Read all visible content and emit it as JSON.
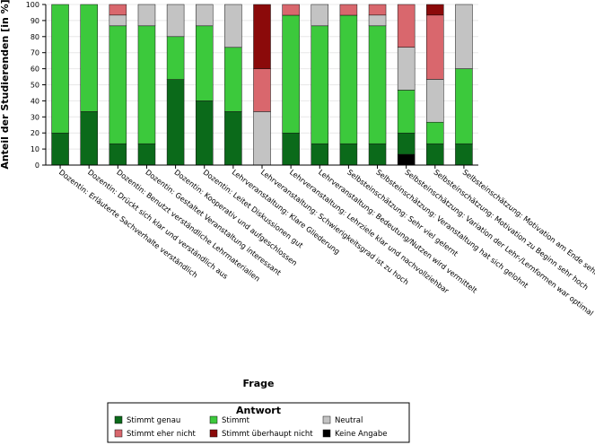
{
  "chart_data": {
    "type": "bar",
    "stacked": true,
    "xlabel": "Frage",
    "ylabel": "Anteil der Studierenden [in %]",
    "ylim": [
      0,
      100
    ],
    "yticks": [
      0,
      10,
      20,
      30,
      40,
      50,
      60,
      70,
      80,
      90,
      100
    ],
    "categories": [
      "Dozentin: Erläuterte Sachverhalte verständlich",
      "Dozentin: Drückt sich klar und verständlich aus",
      "Dozentin: Benutzt verständliche Lehrmaterialien",
      "Dozentin: Gestaltet Veranstaltung interessant",
      "Dozentin: Kooperativ und aufgeschlossen",
      "Dozentin: Leitet Diskussionen gut",
      "Lehrveranstaltung: Klare Gliederung",
      "Lehrveranstaltung: Schwierigkeitsgrad ist zu hoch",
      "Lehrveranstaltung: Lehrziele klar und nachvollziehbar",
      "Lehrveranstaltung: Bedeutung/Nutzen wird vermittelt",
      "Selbsteinschätzung: Sehr viel gelernt",
      "Selbsteinschätzung: Veranstaltung hat sich gelohnt",
      "Selbsteinschätzung: Variation der Lehr-/Lernformen war optimal",
      "Selbsteinschätzung: Motivation zu Beginn sehr hoch",
      "Selbsteinschätzung: Motivation am Ende sehr hoch"
    ],
    "series": [
      {
        "name": "Keine Angabe",
        "color": "#000000",
        "values": [
          0,
          0,
          0,
          0,
          0,
          0,
          0,
          0,
          0,
          0,
          0,
          0,
          6.7,
          0,
          0
        ]
      },
      {
        "name": "Stimmt genau",
        "color": "#0b6a1a",
        "values": [
          20,
          33.3,
          13.3,
          13.3,
          53.3,
          40,
          33.3,
          0,
          20,
          13.3,
          13.3,
          13.3,
          13.3,
          13.3,
          13.3
        ]
      },
      {
        "name": "Stimmt",
        "color": "#3cc93c",
        "values": [
          80,
          66.7,
          73.4,
          73.4,
          26.7,
          46.7,
          40,
          0,
          73.3,
          73.4,
          80,
          73.4,
          26.7,
          13.4,
          46.7
        ]
      },
      {
        "name": "Neutral",
        "color": "#c3c3c3",
        "values": [
          0,
          0,
          6.7,
          13.3,
          20,
          13.3,
          26.7,
          33.3,
          0,
          13.3,
          0,
          6.7,
          26.7,
          26.7,
          40
        ]
      },
      {
        "name": "Stimmt eher nicht",
        "color": "#d9676d",
        "values": [
          0,
          0,
          6.6,
          0,
          0,
          0,
          0,
          26.7,
          6.7,
          0,
          6.7,
          6.6,
          26.6,
          40,
          0
        ]
      },
      {
        "name": "Stimmt überhaupt nicht",
        "color": "#8b0a0a",
        "values": [
          0,
          0,
          0,
          0,
          0,
          0,
          0,
          40,
          0,
          0,
          0,
          0,
          0,
          6.6,
          0
        ]
      }
    ],
    "legend": {
      "title": "Antwort",
      "placement": "bottom",
      "entries": [
        "Stimmt genau",
        "Stimmt",
        "Neutral",
        "Stimmt eher nicht",
        "Stimmt überhaupt nicht",
        "Keine Angabe"
      ]
    }
  }
}
